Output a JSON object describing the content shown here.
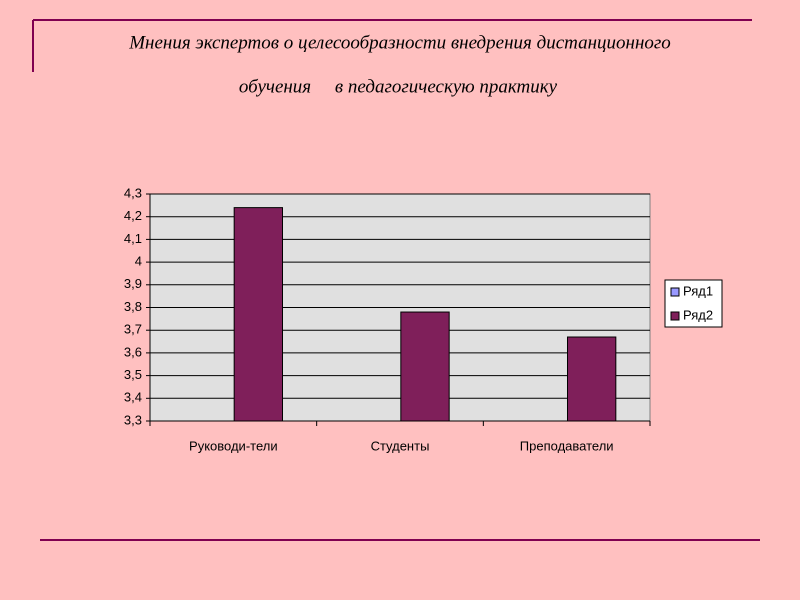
{
  "chart_data": {
    "type": "bar",
    "title": [
      "Мнения экспертов о целесообразности внедрения дистанционного",
      "обучения     в педагогическую практику"
    ],
    "categories": [
      "Руководи-тели",
      "Студенты",
      "Преподаватели"
    ],
    "series": [
      {
        "name": "Ряд1",
        "color": "#9999ff",
        "values": [
          null,
          null,
          null
        ]
      },
      {
        "name": "Ряд2",
        "color": "#7f1f5a",
        "values": [
          4.24,
          3.78,
          3.67
        ]
      }
    ],
    "ylim": [
      3.3,
      4.3
    ],
    "yticks": [
      {
        "value": 3.3,
        "label": "3,3"
      },
      {
        "value": 3.4,
        "label": "3,4"
      },
      {
        "value": 3.5,
        "label": "3,5"
      },
      {
        "value": 3.6,
        "label": "3,6"
      },
      {
        "value": 3.7,
        "label": "3,7"
      },
      {
        "value": 3.8,
        "label": "3,8"
      },
      {
        "value": 3.9,
        "label": "3,9"
      },
      4,
      {
        "value": 4.1,
        "label": "4,1"
      },
      {
        "value": 4.2,
        "label": "4,2"
      },
      {
        "value": 4.3,
        "label": "4,3"
      }
    ],
    "grid": true,
    "legend": "right"
  }
}
